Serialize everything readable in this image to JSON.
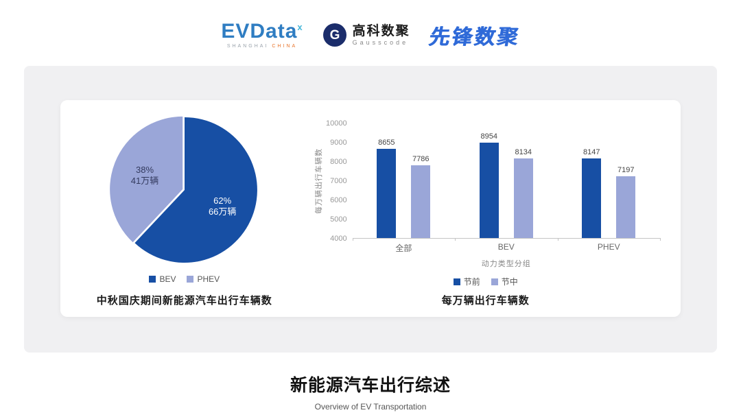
{
  "header": {
    "evdata": {
      "name": "EVData",
      "sup": "x",
      "tagline_left": "SHANGHAI",
      "tagline_right": "CHINA"
    },
    "gausscode": {
      "icon_glyph": "G",
      "cn": "高科数聚",
      "en": "Gausscode"
    },
    "pioneer": {
      "text": "先锋数聚"
    }
  },
  "colors": {
    "primary_blue": "#174FA4",
    "light_periwinkle": "#9AA6D8",
    "evdata_blue": "#2F7DC2",
    "evdata_sup_teal": "#45B6D9",
    "gausscode_navy": "#1B2D6B",
    "pioneer_blue": "#2F6AD8",
    "tagline_orange": "#E8732A",
    "panel_gray": "#F0F0F2"
  },
  "chart_data": [
    {
      "type": "pie",
      "title": "中秋国庆期间新能源汽车出行车辆数",
      "slices": [
        {
          "label": "BEV",
          "percent": 62,
          "value_label": "66万辆",
          "color": "#174FA4",
          "text_color": "#FFFFFF",
          "explode": 0
        },
        {
          "label": "PHEV",
          "percent": 38,
          "value_label": "41万辆",
          "color": "#9AA6D8",
          "text_color": "#333A5E",
          "explode": 3
        }
      ],
      "legend_position": "bottom"
    },
    {
      "type": "bar",
      "title": "每万辆出行车辆数",
      "categories": [
        "全部",
        "BEV",
        "PHEV"
      ],
      "series": [
        {
          "name": "节前",
          "color": "#174FA4",
          "values": [
            8655,
            8954,
            8147
          ]
        },
        {
          "name": "节中",
          "color": "#9AA6D8",
          "values": [
            7786,
            8134,
            7197
          ]
        }
      ],
      "xlabel": "动力类型分组",
      "ylabel": "每万辆出行车辆数",
      "ylim": [
        4000,
        10000
      ],
      "yticks": [
        4000,
        5000,
        6000,
        7000,
        8000,
        9000,
        10000
      ],
      "grid": false,
      "legend_position": "bottom"
    }
  ],
  "footer": {
    "title": "新能源汽车出行综述",
    "subtitle": "Overview of EV Transportation"
  }
}
